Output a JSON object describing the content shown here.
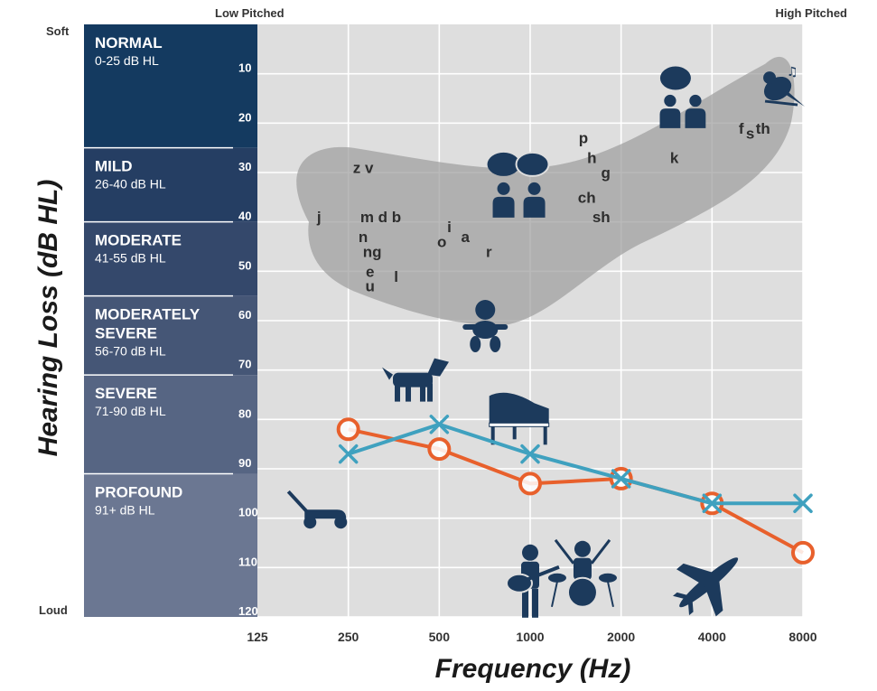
{
  "chart_data": {
    "type": "line",
    "xlabel": "Frequency (Hz)",
    "ylabel": "Hearing Loss (dB HL)",
    "x": [
      125,
      250,
      500,
      1000,
      2000,
      4000,
      8000
    ],
    "x_tick_labels": [
      "125",
      "250",
      "500",
      "1000",
      "2000",
      "4000",
      "8000"
    ],
    "x_scale": "log2",
    "ylim": [
      0,
      120
    ],
    "y_inverted": true,
    "y_ticks": [
      10,
      20,
      30,
      40,
      50,
      60,
      70,
      80,
      90,
      100,
      110,
      120
    ],
    "top_left_label": "Low Pitched",
    "top_right_label": "High Pitched",
    "y_top_label": "Soft",
    "y_bottom_label": "Loud",
    "series": [
      {
        "marker": "circle",
        "color": "#e8602c",
        "points": [
          [
            250,
            82
          ],
          [
            500,
            86
          ],
          [
            1000,
            93
          ],
          [
            2000,
            92
          ],
          [
            4000,
            97
          ],
          [
            8000,
            107
          ]
        ]
      },
      {
        "marker": "x",
        "color": "#3fa1bf",
        "points": [
          [
            250,
            87
          ],
          [
            500,
            81
          ],
          [
            1000,
            87
          ],
          [
            2000,
            92
          ],
          [
            4000,
            97
          ],
          [
            8000,
            97
          ]
        ]
      }
    ],
    "bands": [
      {
        "title_lines": [
          "NORMAL"
        ],
        "range_label": "0-25 dB HL",
        "from": 0,
        "to": 25,
        "color": "#143a60"
      },
      {
        "title_lines": [
          "MILD"
        ],
        "range_label": "26-40 dB HL",
        "from": 25,
        "to": 40,
        "color": "#253e63"
      },
      {
        "title_lines": [
          "MODERATE"
        ],
        "range_label": "41-55 dB HL",
        "from": 40,
        "to": 55,
        "color": "#34486b"
      },
      {
        "title_lines": [
          "MODERATELY",
          "SEVERE"
        ],
        "range_label": "56-70 dB HL",
        "from": 55,
        "to": 71,
        "color": "#455676"
      },
      {
        "title_lines": [
          "SEVERE"
        ],
        "range_label": "71-90 dB HL",
        "from": 71,
        "to": 91,
        "color": "#566583"
      },
      {
        "title_lines": [
          "PROFOUND"
        ],
        "range_label": "91+ dB HL",
        "from": 91,
        "to": 121,
        "color": "#6b7792"
      }
    ],
    "speech_sounds": [
      {
        "text": "z v",
        "f": 280,
        "db": 29
      },
      {
        "text": "j",
        "f": 200,
        "db": 39
      },
      {
        "text": "m d b",
        "f": 320,
        "db": 39
      },
      {
        "text": "n",
        "f": 280,
        "db": 43
      },
      {
        "text": "ng",
        "f": 300,
        "db": 46
      },
      {
        "text": "e",
        "f": 295,
        "db": 50
      },
      {
        "text": "u",
        "f": 295,
        "db": 53
      },
      {
        "text": "l",
        "f": 360,
        "db": 51
      },
      {
        "text": "o",
        "f": 510,
        "db": 44
      },
      {
        "text": "i",
        "f": 540,
        "db": 41
      },
      {
        "text": "a",
        "f": 610,
        "db": 43
      },
      {
        "text": "r",
        "f": 730,
        "db": 46
      },
      {
        "text": "p",
        "f": 1500,
        "db": 23
      },
      {
        "text": "h",
        "f": 1600,
        "db": 27
      },
      {
        "text": "g",
        "f": 1780,
        "db": 30
      },
      {
        "text": "ch",
        "f": 1540,
        "db": 35
      },
      {
        "text": "sh",
        "f": 1720,
        "db": 39
      },
      {
        "text": "k",
        "f": 3000,
        "db": 27
      },
      {
        "text": "f",
        "f": 5000,
        "db": 21
      },
      {
        "text": "s",
        "f": 5350,
        "db": 22
      },
      {
        "text": "th",
        "f": 5900,
        "db": 21
      }
    ],
    "icons": [
      {
        "name": "people-talking-icon",
        "f": 950,
        "db": 32
      },
      {
        "name": "conversation-icon",
        "f": 3200,
        "db": 14
      },
      {
        "name": "bird-icon",
        "f": 6600,
        "db": 13
      },
      {
        "name": "crying-baby-icon",
        "f": 710,
        "db": 60
      },
      {
        "name": "barking-dog-icon",
        "f": 420,
        "db": 72
      },
      {
        "name": "piano-icon",
        "f": 900,
        "db": 80
      },
      {
        "name": "lawn-mower-icon",
        "f": 200,
        "db": 99
      },
      {
        "name": "guitar-player-icon",
        "f": 1000,
        "db": 111
      },
      {
        "name": "drummer-icon",
        "f": 1450,
        "db": 111
      },
      {
        "name": "airplane-icon",
        "f": 3900,
        "db": 113
      }
    ]
  }
}
